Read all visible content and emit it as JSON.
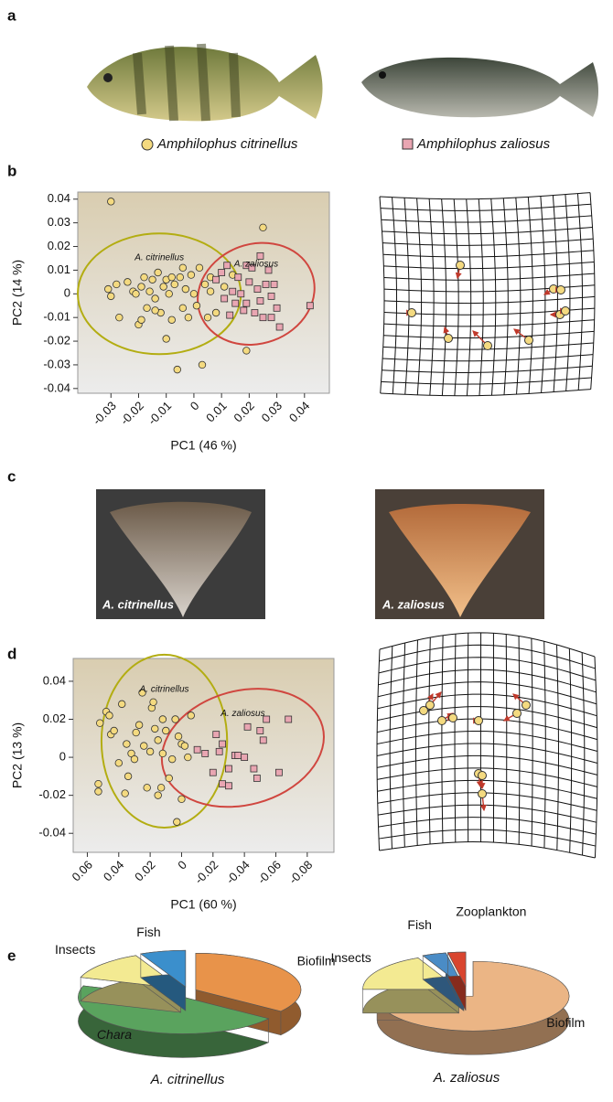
{
  "panel_labels": [
    "a",
    "b",
    "c",
    "d",
    "e"
  ],
  "legend": [
    {
      "label": "Amphilophus citrinellus",
      "marker": "circle",
      "color": "#f4da80"
    },
    {
      "label": "Amphilophus zaliosus",
      "marker": "square",
      "color": "#e9a6b2"
    }
  ],
  "photo_labels": [
    "A. citrinellus",
    "A. zaliosus"
  ],
  "chart_data": [
    {
      "type": "scatter",
      "xlabel": "PC1 (46 %)",
      "ylabel": "PC2 (14 %)",
      "xlim": [
        -0.042,
        0.049
      ],
      "ylim": [
        -0.042,
        0.043
      ],
      "xticks": [
        -0.03,
        -0.02,
        -0.01,
        0,
        0.01,
        0.02,
        0.03,
        0.04
      ],
      "yticks": [
        -0.04,
        -0.03,
        -0.02,
        -0.01,
        0,
        0.01,
        0.02,
        0.03,
        0.04
      ],
      "series": [
        {
          "name": "A. citrinellus",
          "marker": "circle",
          "color": "#f4da80",
          "ellipse": {
            "cx": -0.0125,
            "cy": 0,
            "rx": 0.0295,
            "ry": 0.0255,
            "angle": 0,
            "color": "#b3ad12"
          },
          "x": [
            -0.03,
            -0.031,
            -0.03,
            -0.028,
            -0.027,
            -0.024,
            -0.022,
            -0.021,
            -0.02,
            -0.019,
            -0.019,
            -0.018,
            -0.017,
            -0.016,
            -0.015,
            -0.014,
            -0.013,
            -0.012,
            -0.011,
            -0.01,
            -0.01,
            -0.009,
            -0.008,
            -0.007,
            -0.006,
            -0.005,
            -0.004,
            -0.003,
            -0.002,
            -0.001,
            0.0,
            0.001,
            0.002,
            0.003,
            0.004,
            0.005,
            0.006,
            0.008,
            0.011,
            0.014,
            0.019,
            0.025,
            -0.008,
            -0.014,
            0.006,
            -0.004
          ],
          "values": [
            0.039,
            0.002,
            -0.001,
            0.004,
            -0.01,
            0.005,
            0.001,
            0.0,
            -0.013,
            -0.011,
            0.003,
            0.007,
            -0.006,
            0.001,
            0.006,
            -0.002,
            0.009,
            -0.008,
            0.003,
            0.006,
            -0.019,
            0.0,
            -0.011,
            0.004,
            -0.032,
            0.007,
            -0.006,
            0.002,
            -0.01,
            0.008,
            0.0,
            -0.005,
            0.011,
            -0.03,
            0.004,
            -0.01,
            0.001,
            -0.008,
            0.003,
            0.008,
            -0.024,
            0.028,
            0.007,
            -0.007,
            0.007,
            0.011
          ]
        },
        {
          "name": "A. zaliosus",
          "marker": "square",
          "color": "#e9a6b2",
          "ellipse": {
            "cx": 0.0225,
            "cy": 0,
            "rx": 0.0215,
            "ry": 0.021,
            "angle": -20,
            "color": "#d0463f"
          },
          "x": [
            0.008,
            0.01,
            0.011,
            0.012,
            0.014,
            0.015,
            0.016,
            0.017,
            0.018,
            0.019,
            0.019,
            0.02,
            0.021,
            0.022,
            0.023,
            0.024,
            0.025,
            0.026,
            0.027,
            0.028,
            0.028,
            0.029,
            0.03,
            0.031,
            0.042,
            0.013,
            0.024
          ],
          "values": [
            0.006,
            0.009,
            -0.002,
            0.012,
            0.001,
            -0.004,
            0.007,
            0.0,
            -0.007,
            0.012,
            -0.004,
            0.005,
            0.011,
            -0.008,
            0.002,
            0.016,
            -0.01,
            0.004,
            0.01,
            -0.001,
            -0.01,
            0.004,
            -0.006,
            -0.014,
            -0.005,
            -0.009,
            -0.003
          ]
        }
      ]
    },
    {
      "type": "scatter",
      "xlabel": "PC1 (60 %)",
      "ylabel": "PC2 (13 %)",
      "xlim": [
        0.069,
        -0.097
      ],
      "ylim": [
        -0.05,
        0.052
      ],
      "xticks": [
        0.06,
        0.04,
        0.02,
        0,
        -0.02,
        -0.04,
        -0.06,
        -0.08
      ],
      "yticks": [
        -0.04,
        -0.02,
        0,
        0.02,
        0.04
      ],
      "series": [
        {
          "name": "A. citrinellus",
          "marker": "circle",
          "color": "#f4da80",
          "ellipse": {
            "cx": 0.011,
            "cy": 0.0085,
            "rx": 0.04,
            "ry": 0.0455,
            "angle": 0,
            "color": "#b3ad12"
          },
          "x": [
            0.053,
            0.053,
            0.052,
            0.048,
            0.046,
            0.045,
            0.043,
            0.04,
            0.038,
            0.036,
            0.035,
            0.034,
            0.032,
            0.03,
            0.029,
            0.027,
            0.025,
            0.024,
            0.022,
            0.02,
            0.019,
            0.017,
            0.015,
            0.013,
            0.012,
            0.01,
            0.008,
            0.006,
            0.004,
            0.003,
            0.002,
            0.0,
            -0.002,
            -0.004,
            -0.006,
            0.012,
            0.015,
            0.0,
            0.018
          ],
          "values": [
            -0.018,
            -0.014,
            0.018,
            0.024,
            0.022,
            0.012,
            0.014,
            -0.003,
            0.028,
            -0.019,
            0.007,
            -0.01,
            0.002,
            -0.001,
            0.013,
            0.017,
            0.034,
            0.006,
            -0.016,
            0.003,
            0.026,
            0.015,
            0.009,
            -0.016,
            0.002,
            0.014,
            -0.011,
            -0.001,
            0.02,
            -0.034,
            0.011,
            0.007,
            0.006,
            0.0,
            0.022,
            0.02,
            -0.02,
            -0.022,
            0.029
          ]
        },
        {
          "name": "A. zaliosus",
          "marker": "square",
          "color": "#e9a6b2",
          "ellipse": {
            "cx": -0.039,
            "cy": 0.005,
            "rx": 0.0525,
            "ry": 0.03,
            "angle": -15,
            "color": "#d0463f"
          },
          "x": [
            -0.01,
            -0.015,
            -0.02,
            -0.022,
            -0.024,
            -0.026,
            -0.03,
            -0.034,
            -0.036,
            -0.04,
            -0.042,
            -0.046,
            -0.048,
            -0.05,
            -0.052,
            -0.054,
            -0.062,
            -0.068,
            -0.03,
            -0.026
          ],
          "values": [
            0.004,
            0.002,
            -0.008,
            0.012,
            0.003,
            -0.014,
            -0.015,
            0.001,
            0.001,
            0.0,
            0.016,
            -0.006,
            -0.011,
            0.014,
            0.009,
            0.02,
            -0.008,
            0.02,
            -0.006,
            0.007
          ]
        }
      ]
    },
    {
      "type": "pie",
      "title": "A. citrinellus",
      "categories": [
        "Biofilm",
        "Chara",
        "Insects",
        "Fish"
      ],
      "values": [
        35,
        45,
        13,
        7
      ],
      "colors": [
        "#e8934a",
        "#5aa35e",
        "#f3ea92",
        "#3b8fcc"
      ]
    },
    {
      "type": "pie",
      "title": "A. zaliosus",
      "categories": [
        "Biofilm",
        "Insects",
        "Fish",
        "Zooplankton"
      ],
      "values": [
        75,
        18,
        4,
        3
      ],
      "colors": [
        "#ebb585",
        "#f3ea92",
        "#4a8cc6",
        "#d9452f"
      ]
    }
  ]
}
